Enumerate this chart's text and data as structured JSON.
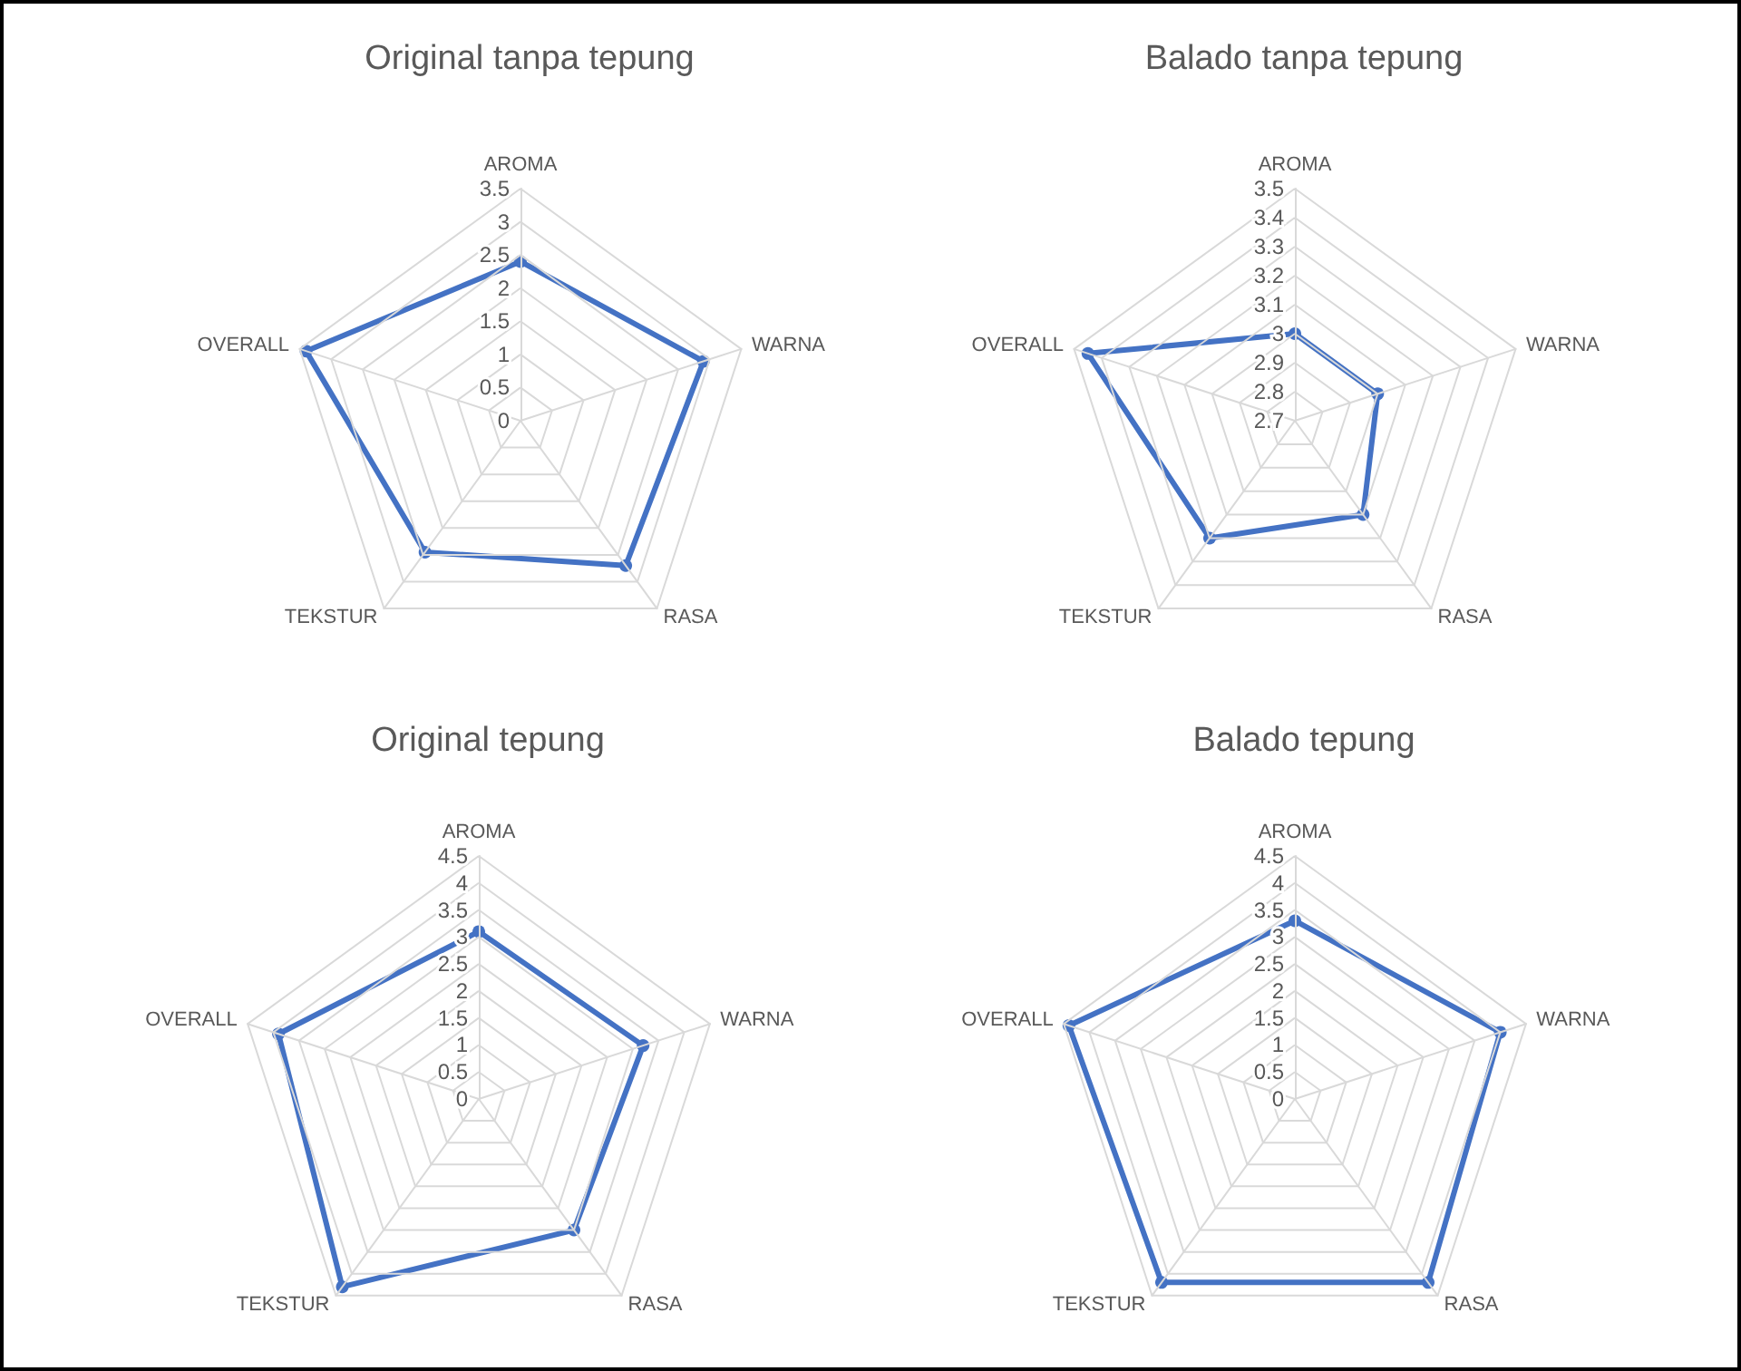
{
  "chart_data": [
    {
      "type": "radar",
      "title": "Original tanpa tepung",
      "categories": [
        "AROMA",
        "WARNA",
        "RASA",
        "TEKSTUR",
        "OVERALL"
      ],
      "ylim": [
        0,
        3.5
      ],
      "yticks": [
        0,
        0.5,
        1,
        1.5,
        2,
        2.5,
        3,
        3.5
      ],
      "grid": true,
      "marker": "circle",
      "line_style": "solid",
      "series": [
        {
          "color": "#4472c4",
          "values": [
            2.4,
            2.9,
            2.7,
            2.45,
            3.4
          ]
        }
      ]
    },
    {
      "type": "radar",
      "title": "Balado tanpa tepung",
      "categories": [
        "AROMA",
        "WARNA",
        "RASA",
        "TEKSTUR",
        "OVERALL"
      ],
      "ylim": [
        2.7,
        3.5
      ],
      "yticks": [
        2.7,
        2.8,
        2.9,
        3,
        3.1,
        3.2,
        3.3,
        3.4,
        3.5
      ],
      "grid": true,
      "marker": "circle",
      "line_style": "solid",
      "series": [
        {
          "color": "#4472c4",
          "values": [
            3.0,
            3.0,
            3.1,
            3.2,
            3.45
          ]
        }
      ]
    },
    {
      "type": "radar",
      "title": "Original tepung",
      "categories": [
        "AROMA",
        "WARNA",
        "RASA",
        "TEKSTUR",
        "OVERALL"
      ],
      "ylim": [
        0,
        4.5
      ],
      "yticks": [
        0,
        0.5,
        1,
        1.5,
        2,
        2.5,
        3,
        3.5,
        4,
        4.5
      ],
      "grid": true,
      "marker": "circle",
      "line_style": "solid",
      "series": [
        {
          "color": "#4472c4",
          "values": [
            3.1,
            3.2,
            3.0,
            4.3,
            3.9
          ]
        }
      ]
    },
    {
      "type": "radar",
      "title": "Balado tepung",
      "categories": [
        "AROMA",
        "WARNA",
        "RASA",
        "TEKSTUR",
        "OVERALL"
      ],
      "ylim": [
        0,
        4.5
      ],
      "yticks": [
        0,
        0.5,
        1,
        1.5,
        2,
        2.5,
        3,
        3.5,
        4,
        4.5
      ],
      "grid": true,
      "marker": "circle",
      "line_style": "solid",
      "series": [
        {
          "color": "#4472c4",
          "values": [
            3.3,
            4.0,
            4.2,
            4.2,
            4.4
          ]
        }
      ]
    }
  ]
}
